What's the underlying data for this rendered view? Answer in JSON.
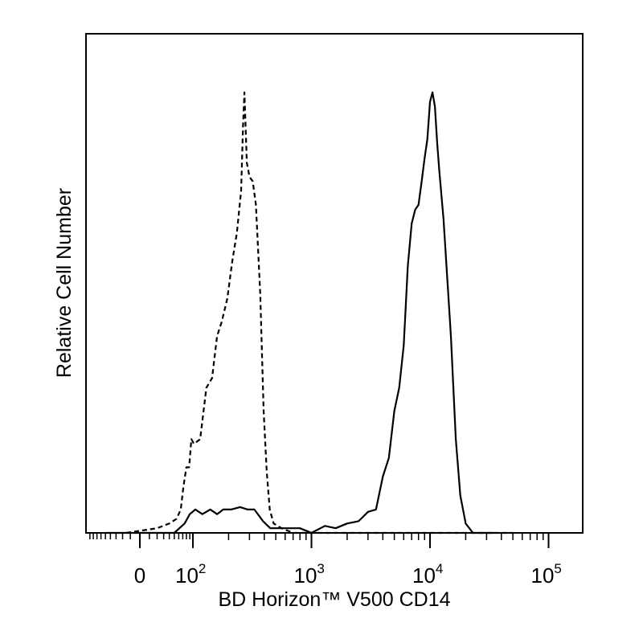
{
  "chart_data": {
    "type": "line",
    "title": "",
    "xlabel": "BD Horizon™ V500 CD14",
    "ylabel": "Relative Cell Number",
    "x_scale": "biexponential (linear near 0, logarithmic above)",
    "xlim": [
      -200,
      200000
    ],
    "ylim": [
      0,
      1
    ],
    "x_ticks": [
      {
        "value": 0,
        "label": "0"
      },
      {
        "value": 100,
        "label": "10",
        "exp": "2"
      },
      {
        "value": 1000,
        "label": "10",
        "exp": "3"
      },
      {
        "value": 10000,
        "label": "10",
        "exp": "4"
      },
      {
        "value": 100000,
        "label": "10",
        "exp": "5"
      }
    ],
    "grid": false,
    "legend": "none",
    "series": [
      {
        "style": "dashed",
        "x": [
          -15,
          20,
          40,
          55,
          65,
          72,
          80,
          88,
          95,
          102,
          115,
          130,
          145,
          160,
          175,
          195,
          215,
          235,
          255,
          265,
          272,
          285,
          300,
          320,
          340,
          370,
          395,
          420,
          445,
          480,
          560,
          700,
          1000,
          2000,
          5000,
          10000,
          20000,
          50000
        ],
        "y": [
          0.0,
          0.01,
          0.02,
          0.03,
          0.05,
          0.1,
          0.14,
          0.14,
          0.2,
          0.19,
          0.2,
          0.31,
          0.33,
          0.42,
          0.45,
          0.5,
          0.58,
          0.64,
          0.73,
          0.87,
          0.94,
          0.79,
          0.76,
          0.75,
          0.7,
          0.51,
          0.26,
          0.13,
          0.05,
          0.02,
          0.01,
          0.0,
          0.0,
          0.0,
          0.0,
          0.0,
          0.0,
          0.0
        ]
      },
      {
        "style": "solid",
        "x": [
          -50,
          50,
          75,
          90,
          105,
          120,
          140,
          160,
          180,
          210,
          250,
          290,
          330,
          390,
          450,
          600,
          800,
          1000,
          1300,
          1600,
          2000,
          2500,
          3000,
          3500,
          4000,
          4500,
          5000,
          5500,
          6000,
          6500,
          7000,
          7500,
          8000,
          8500,
          9000,
          9500,
          10000,
          10500,
          11000,
          11500,
          12000,
          13000,
          14000,
          15000,
          16500,
          18000,
          20000,
          23000,
          27000,
          35000
        ],
        "y": [
          0.0,
          0.0,
          0.02,
          0.04,
          0.05,
          0.04,
          0.05,
          0.04,
          0.05,
          0.05,
          0.055,
          0.05,
          0.05,
          0.025,
          0.01,
          0.01,
          0.01,
          0.0,
          0.015,
          0.01,
          0.02,
          0.025,
          0.045,
          0.05,
          0.12,
          0.16,
          0.26,
          0.31,
          0.4,
          0.57,
          0.66,
          0.69,
          0.7,
          0.75,
          0.8,
          0.84,
          0.92,
          0.94,
          0.91,
          0.83,
          0.77,
          0.67,
          0.54,
          0.42,
          0.2,
          0.08,
          0.02,
          0.0,
          0.0,
          0.0
        ]
      }
    ]
  }
}
